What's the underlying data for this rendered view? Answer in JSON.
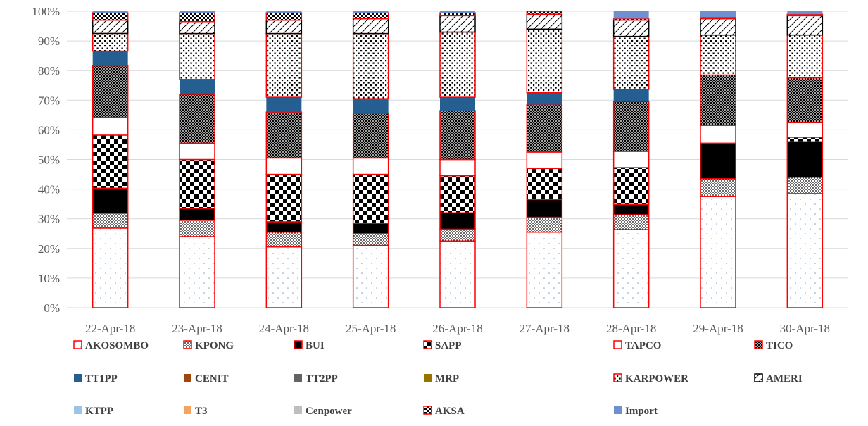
{
  "chart_data": {
    "type": "bar",
    "stacked": true,
    "percent_stacked": true,
    "categories": [
      "22-Apr-18",
      "23-Apr-18",
      "24-Apr-18",
      "25-Apr-18",
      "26-Apr-18",
      "27-Apr-18",
      "28-Apr-18",
      "29-Apr-18",
      "30-Apr-18"
    ],
    "ylim": [
      0,
      100
    ],
    "yticks": [
      "0%",
      "10%",
      "20%",
      "30%",
      "40%",
      "50%",
      "60%",
      "70%",
      "80%",
      "90%",
      "100%"
    ],
    "grid": true,
    "legend_position": "bottom",
    "series": [
      {
        "name": "AKOSOMBO",
        "values": [
          27.0,
          24.0,
          20.5,
          21.0,
          22.5,
          25.5,
          26.5,
          37.5,
          38.5
        ],
        "fill": "#ffffff",
        "pattern": "sparse-dots",
        "border": "#ff0000"
      },
      {
        "name": "KPONG",
        "values": [
          5.0,
          5.5,
          5.0,
          4.0,
          4.0,
          5.0,
          5.0,
          6.0,
          5.5
        ],
        "fill": "#ffffff",
        "pattern": "dense-dots",
        "border": "#ff0000"
      },
      {
        "name": "BUI",
        "values": [
          8.5,
          4.0,
          3.5,
          3.5,
          5.5,
          6.0,
          3.5,
          12.0,
          12.0
        ],
        "fill": "#000000",
        "pattern": "solid",
        "border": "#ff0000"
      },
      {
        "name": "SAPP",
        "values": [
          18.0,
          16.5,
          16.0,
          16.5,
          12.5,
          10.5,
          12.5,
          0,
          1.5
        ],
        "fill": "#ffffff",
        "pattern": "checker",
        "border": "#ff0000"
      },
      {
        "name": "TAPCO",
        "values": [
          6.0,
          5.5,
          5.5,
          5.5,
          5.5,
          5.5,
          5.5,
          6.0,
          5.0
        ],
        "fill": "#ffffff",
        "pattern": "none",
        "border": "#ff0000"
      },
      {
        "name": "TICO",
        "values": [
          17.5,
          16.5,
          15.5,
          15.0,
          16.5,
          16.0,
          17.0,
          17.0,
          15.0
        ],
        "fill": "#ffffff",
        "pattern": "crosshatch",
        "border": "#ff0000"
      },
      {
        "name": "TT1PP",
        "values": [
          5.0,
          5.0,
          5.0,
          5.0,
          4.5,
          4.0,
          4.0,
          0,
          0
        ],
        "fill": "#255e91",
        "pattern": "solid",
        "border": "none"
      },
      {
        "name": "CENIT",
        "values": [
          0,
          0,
          0,
          0,
          0,
          0,
          0,
          0,
          0
        ],
        "fill": "#9e480e",
        "pattern": "solid",
        "border": "none"
      },
      {
        "name": "TT2PP",
        "values": [
          0,
          0,
          0,
          0,
          0,
          0,
          0,
          0,
          0
        ],
        "fill": "#636363",
        "pattern": "solid",
        "border": "none"
      },
      {
        "name": "MRP",
        "values": [
          0,
          0,
          0,
          0,
          0,
          0,
          0,
          0,
          0
        ],
        "fill": "#997300",
        "pattern": "solid",
        "border": "none"
      },
      {
        "name": "KARPOWER",
        "values": [
          6.0,
          15.5,
          21.5,
          22.0,
          22.0,
          21.5,
          18.0,
          13.5,
          14.5
        ],
        "fill": "#ffffff",
        "pattern": "big-dots",
        "border": "#ff0000"
      },
      {
        "name": "AMERI",
        "values": [
          4.5,
          4.0,
          4.5,
          5.0,
          5.5,
          5.0,
          5.5,
          5.5,
          6.5
        ],
        "fill": "#ffffff",
        "pattern": "diagonal",
        "border": "#000000"
      },
      {
        "name": "KTPP",
        "values": [
          0,
          0,
          0,
          0,
          0,
          0,
          0,
          0,
          0
        ],
        "fill": "#9dc3e6",
        "pattern": "solid",
        "border": "none"
      },
      {
        "name": "T3",
        "values": [
          0,
          0,
          0,
          0,
          0,
          0,
          0,
          0,
          0
        ],
        "fill": "#f4a460",
        "pattern": "solid",
        "border": "none"
      },
      {
        "name": "Cenpower",
        "values": [
          0,
          0,
          0,
          0,
          0,
          0,
          0,
          0,
          0
        ],
        "fill": "#bfbfbf",
        "pattern": "solid",
        "border": "none"
      },
      {
        "name": "AKSA",
        "values": [
          2.5,
          3.0,
          2.5,
          2.0,
          1.0,
          1.0,
          0.5,
          0.5,
          0.5
        ],
        "fill": "#ffffff",
        "pattern": "small-checker",
        "border": "#ff0000"
      },
      {
        "name": "Import",
        "values": [
          0.5,
          0.5,
          0.5,
          0.5,
          0.5,
          0,
          2.5,
          2.0,
          1.0
        ],
        "fill": "#6f8fcf",
        "pattern": "solid",
        "border": "none"
      }
    ],
    "legend_order": [
      [
        "AKOSOMBO",
        "KPONG",
        "BUI",
        "SAPP",
        "TAPCO",
        "TICO"
      ],
      [
        "TT1PP",
        "CENIT",
        "TT2PP",
        "MRP",
        "KARPOWER",
        "AMERI"
      ],
      [
        "KTPP",
        "T3",
        "Cenpower",
        "AKSA",
        "Import"
      ]
    ],
    "legend_display": {
      "TT1PP": "TT1PP",
      "TT2PP": "TT2PP",
      "T3": "T3"
    }
  }
}
